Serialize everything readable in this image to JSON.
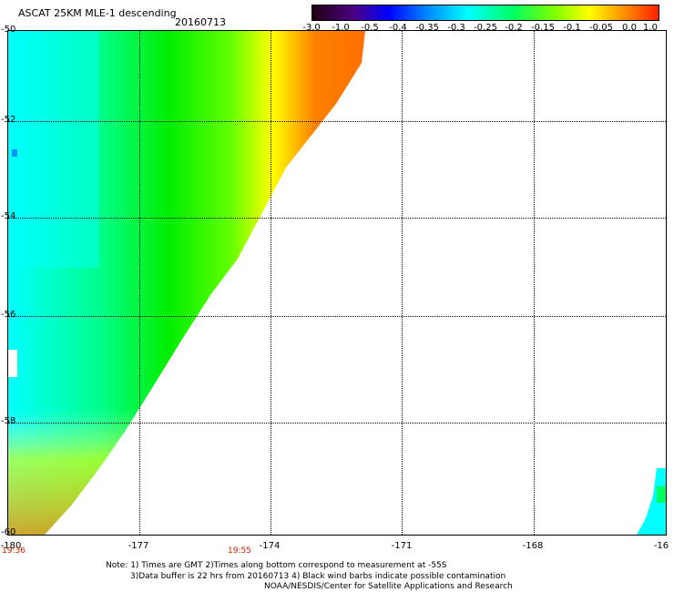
{
  "header": {
    "title": "ASCAT 25KM MLE-1 descending",
    "date": "20160713"
  },
  "colorbar": {
    "ticks": [
      "-3.0",
      "-1.0",
      "-0.5",
      "-0.4",
      "-0.35",
      "-0.3",
      "-0.25",
      "-0.2",
      "-0.15",
      "-0.1",
      "-0.05",
      "0.0",
      "1.0"
    ]
  },
  "axes": {
    "y_labels": [
      "-50",
      "-52",
      "-54",
      "-56",
      "-58",
      "-60"
    ],
    "x_labels": [
      "-180",
      "-177",
      "-174",
      "-171",
      "-168",
      "-16"
    ]
  },
  "times": [
    "19:36",
    "19:55"
  ],
  "notes": {
    "line1": "Note: 1) Times are GMT 2)Times along bottom correspond to measurement at -55S",
    "line2": "3)Data buffer is 22 hrs from 20160713 4) Black wind barbs indicate possible contamination",
    "line3": "NOAA/NESDIS/Center for Satellite Applications and Research"
  },
  "colors": {
    "cyan": "#00ffff",
    "green": "#00ee00",
    "yellow": "#ffff00",
    "orange": "#ff8000"
  }
}
